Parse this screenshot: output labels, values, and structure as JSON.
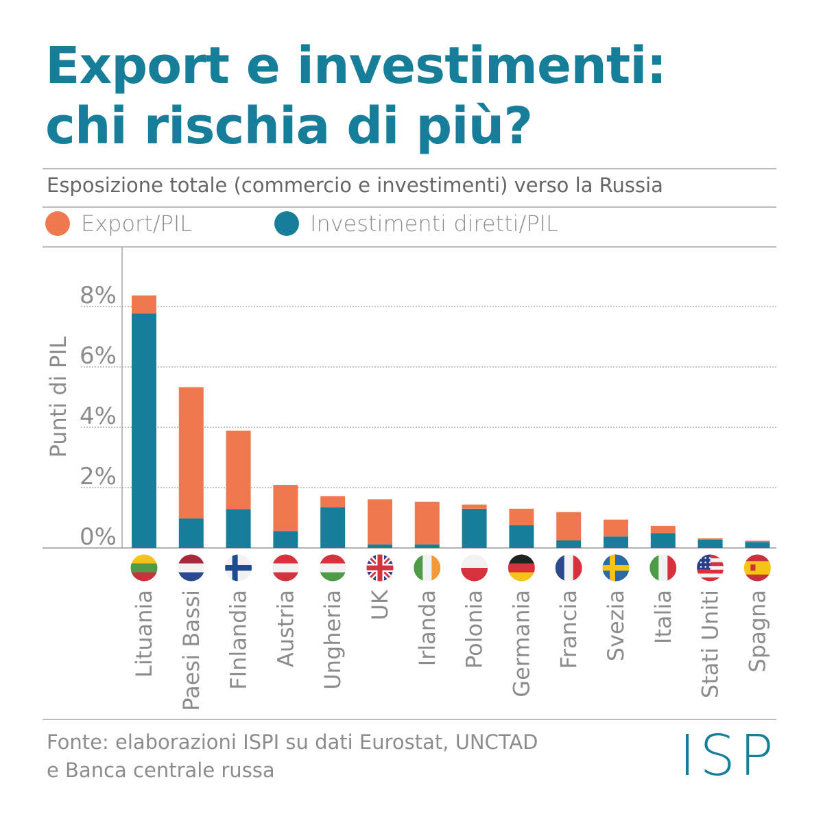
{
  "header": {
    "title_line1": "Export e investimenti:",
    "title_line2": "chi rischia di più?"
  },
  "subtitle": "Esposizione totale (commercio e investimenti) verso la Russia",
  "colors": {
    "title": "#177e9a",
    "export": "#ef784f",
    "investment": "#177e9a",
    "grid": "#9a9a9a",
    "text": "#8c8c8c"
  },
  "chart_data": {
    "type": "bar",
    "stacked": true,
    "ylabel": "Punti di PIL",
    "ylim": [
      0,
      8
    ],
    "yticks": [
      0,
      2,
      4,
      6,
      8
    ],
    "ytick_labels": [
      "0%",
      "2%",
      "4%",
      "6%",
      "8%"
    ],
    "grid": true,
    "legend_position": "top-left",
    "categories": [
      "Lituania",
      "Paesi Bassi",
      "FInlandia",
      "Austria",
      "Ungheria",
      "UK",
      "Irlanda",
      "Polonia",
      "Germania",
      "Francia",
      "Svezia",
      "Italia",
      "Stati Uniti",
      "Spagna"
    ],
    "series": [
      {
        "name": "Investimenti diretti/PIL",
        "color": "#177e9a",
        "values": [
          7.77,
          0.98,
          1.29,
          0.56,
          1.35,
          0.12,
          0.12,
          1.3,
          0.75,
          0.25,
          0.38,
          0.49,
          0.28,
          0.2
        ]
      },
      {
        "name": "Export/PIL",
        "color": "#ef784f",
        "values": [
          0.6,
          4.35,
          2.6,
          1.53,
          0.37,
          1.49,
          1.41,
          0.14,
          0.55,
          0.94,
          0.56,
          0.24,
          0.04,
          0.04
        ]
      }
    ],
    "flags": [
      "lithuania-flag-icon",
      "netherlands-flag-icon",
      "finland-flag-icon",
      "austria-flag-icon",
      "hungary-flag-icon",
      "uk-flag-icon",
      "ireland-flag-icon",
      "poland-flag-icon",
      "germany-flag-icon",
      "france-flag-icon",
      "sweden-flag-icon",
      "italy-flag-icon",
      "usa-flag-icon",
      "spain-flag-icon"
    ]
  },
  "footer": {
    "source_line1": "Fonte: elaborazioni ISPI su dati Eurostat, UNCTAD",
    "source_line2": "e Banca centrale russa",
    "logo_text": "ISPI"
  }
}
